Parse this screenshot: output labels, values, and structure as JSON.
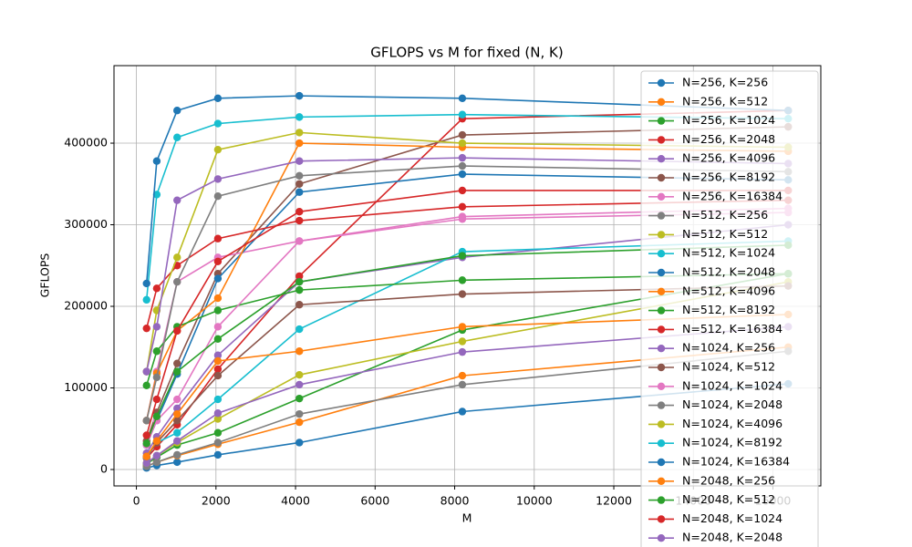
{
  "chart_data": {
    "type": "line",
    "title": "GFLOPS vs M for fixed (N, K)",
    "x_label": "M",
    "y_label": "GFLOPS",
    "x": [
      256,
      512,
      1024,
      2048,
      4096,
      8192,
      16384
    ],
    "xlim": [
      -563,
      17203
    ],
    "xticks": [
      0,
      2000,
      4000,
      6000,
      8000,
      10000,
      12000,
      14000,
      16000
    ],
    "ylim": [
      -20100,
      495000
    ],
    "yticks": [
      0,
      100000,
      200000,
      300000,
      400000
    ],
    "grid": true,
    "legend": "upper right",
    "series": [
      {
        "name": "N=256, K=256",
        "color": "#1f77b4",
        "values": [
          2000,
          5000,
          9000,
          18000,
          33000,
          71000,
          105000
        ]
      },
      {
        "name": "N=256, K=512",
        "color": "#ff7f0e",
        "values": [
          4000,
          9000,
          17000,
          31000,
          58000,
          115000,
          150000
        ]
      },
      {
        "name": "N=256, K=1024",
        "color": "#2ca02c",
        "values": [
          7000,
          15000,
          30000,
          45000,
          87000,
          171000,
          240000
        ]
      },
      {
        "name": "N=256, K=2048",
        "color": "#d62728",
        "values": [
          14000,
          28000,
          55000,
          123000,
          237000,
          430000,
          440000
        ]
      },
      {
        "name": "N=256, K=4096",
        "color": "#9467bd",
        "values": [
          20000,
          40000,
          75000,
          140000,
          230000,
          260000,
          300000
        ]
      },
      {
        "name": "N=256, K=8192",
        "color": "#8c564b",
        "values": [
          35000,
          70000,
          130000,
          240000,
          350000,
          410000,
          420000
        ]
      },
      {
        "name": "N=256, K=16384",
        "color": "#e377c2",
        "values": [
          60000,
          120000,
          230000,
          260000,
          280000,
          310000,
          320000
        ]
      },
      {
        "name": "N=512, K=256",
        "color": "#7f7f7f",
        "values": [
          4000,
          9000,
          18000,
          33000,
          68000,
          104000,
          145000
        ]
      },
      {
        "name": "N=512, K=512",
        "color": "#bcbd22",
        "values": [
          8000,
          17000,
          33000,
          62000,
          116000,
          157000,
          230000
        ]
      },
      {
        "name": "N=512, K=1024",
        "color": "#17becf",
        "values": [
          15000,
          33000,
          45000,
          86000,
          172000,
          267000,
          280000
        ]
      },
      {
        "name": "N=512, K=2048",
        "color": "#1f77b4",
        "values": [
          30000,
          60000,
          117000,
          234000,
          340000,
          362000,
          355000
        ]
      },
      {
        "name": "N=512, K=4096",
        "color": "#ff7f0e",
        "values": [
          60000,
          118000,
          170000,
          210000,
          400000,
          395000,
          390000
        ]
      },
      {
        "name": "N=512, K=8192",
        "color": "#2ca02c",
        "values": [
          103000,
          145000,
          175000,
          195000,
          220000,
          232000,
          240000
        ]
      },
      {
        "name": "N=512, K=16384",
        "color": "#d62728",
        "values": [
          173000,
          222000,
          250000,
          283000,
          305000,
          322000,
          330000
        ]
      },
      {
        "name": "N=1024, K=256",
        "color": "#9467bd",
        "values": [
          8000,
          17000,
          35000,
          69000,
          104000,
          144000,
          175000
        ]
      },
      {
        "name": "N=1024, K=512",
        "color": "#8c564b",
        "values": [
          16000,
          33000,
          60000,
          115000,
          202000,
          215000,
          225000
        ]
      },
      {
        "name": "N=1024, K=1024",
        "color": "#e377c2",
        "values": [
          30000,
          60000,
          86000,
          175000,
          280000,
          307000,
          315000
        ]
      },
      {
        "name": "N=1024, K=2048",
        "color": "#7f7f7f",
        "values": [
          60000,
          113000,
          230000,
          335000,
          360000,
          372000,
          365000
        ]
      },
      {
        "name": "N=1024, K=4096",
        "color": "#bcbd22",
        "values": [
          120000,
          195000,
          260000,
          392000,
          413000,
          400000,
          395000
        ]
      },
      {
        "name": "N=1024, K=8192",
        "color": "#17becf",
        "values": [
          208000,
          337000,
          407000,
          424000,
          432000,
          435000,
          430000
        ]
      },
      {
        "name": "N=1024, K=16384",
        "color": "#1f77b4",
        "values": [
          228000,
          378000,
          440000,
          455000,
          458000,
          455000,
          440000
        ]
      },
      {
        "name": "N=2048, K=256",
        "color": "#ff7f0e",
        "values": [
          16000,
          35000,
          68000,
          133000,
          145000,
          175000,
          190000
        ]
      },
      {
        "name": "N=2048, K=512",
        "color": "#2ca02c",
        "values": [
          32000,
          65000,
          120000,
          160000,
          230000,
          262000,
          275000
        ]
      },
      {
        "name": "N=2048, K=1024",
        "color": "#d62728",
        "values": [
          42000,
          86000,
          170000,
          255000,
          316000,
          342000,
          342000
        ]
      },
      {
        "name": "N=2048, K=2048",
        "color": "#9467bd",
        "values": [
          120000,
          175000,
          330000,
          356000,
          378000,
          382000,
          375000
        ]
      }
    ]
  }
}
